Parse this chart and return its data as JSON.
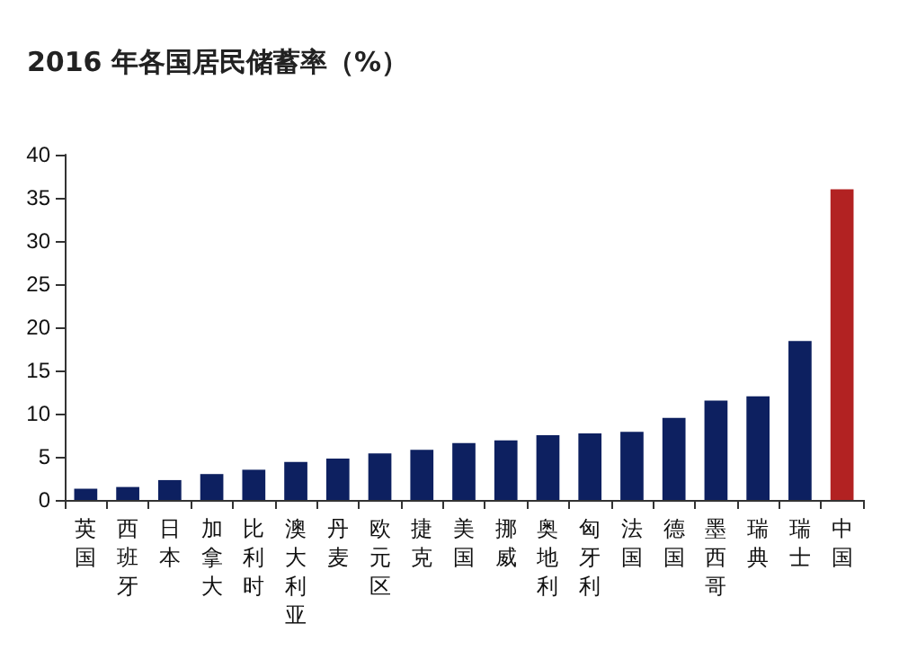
{
  "chart_data": {
    "type": "bar",
    "title": "2016 年各国居民储蓄率（%）",
    "categories": [
      "英国",
      "西班牙",
      "日本",
      "加拿大",
      "比利时",
      "澳大利亚",
      "丹麦",
      "欧元区",
      "捷克",
      "美国",
      "挪威",
      "奥地利",
      "匈牙利",
      "法国",
      "德国",
      "墨西哥",
      "瑞典",
      "瑞士",
      "中国"
    ],
    "values": [
      1.3,
      1.5,
      2.3,
      3.0,
      3.5,
      4.4,
      4.8,
      5.4,
      5.8,
      6.6,
      6.9,
      7.5,
      7.7,
      7.9,
      9.5,
      11.5,
      12,
      18.4,
      36
    ],
    "colors": [
      "#0d2060",
      "#0d2060",
      "#0d2060",
      "#0d2060",
      "#0d2060",
      "#0d2060",
      "#0d2060",
      "#0d2060",
      "#0d2060",
      "#0d2060",
      "#0d2060",
      "#0d2060",
      "#0d2060",
      "#0d2060",
      "#0d2060",
      "#0d2060",
      "#0d2060",
      "#0d2060",
      "#b22222"
    ],
    "ylim": [
      0,
      40
    ],
    "yticks": [
      0,
      5,
      10,
      15,
      20,
      25,
      30,
      35,
      40
    ],
    "grid": false
  }
}
